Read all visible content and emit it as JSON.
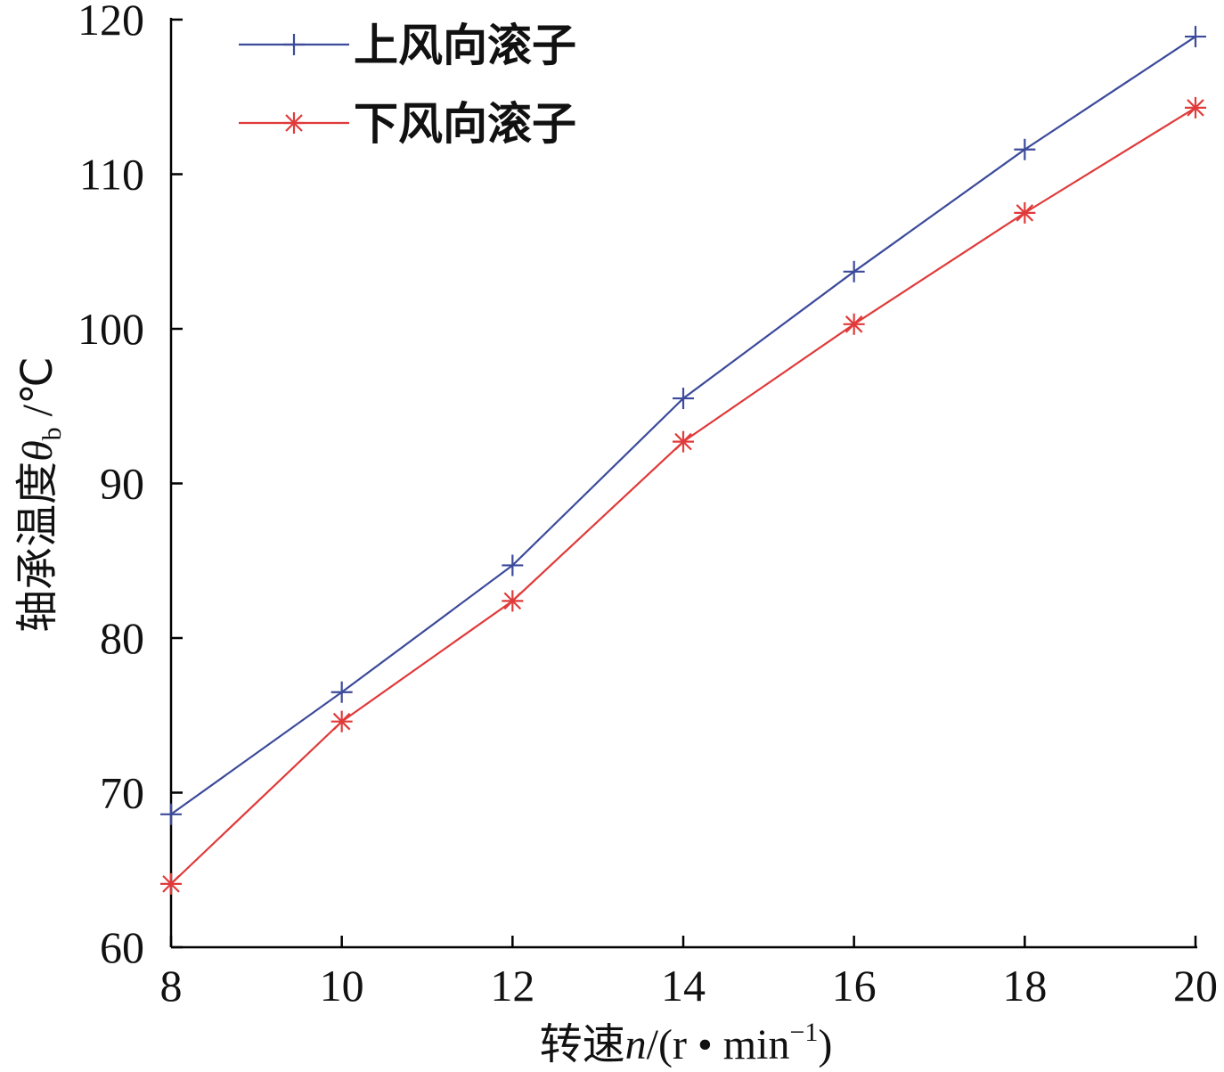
{
  "chart_data": {
    "type": "line",
    "title": "",
    "xlabel": {
      "prefix": "转速",
      "variable": "n",
      "unit_open": "/(r • min",
      "unit_exp": "−1",
      "unit_close": ")"
    },
    "ylabel": {
      "prefix": "轴承温度",
      "variable": "θ",
      "subscript": "b",
      "unit": " /℃"
    },
    "xlim": [
      8,
      20
    ],
    "ylim": [
      60,
      120
    ],
    "xticks": [
      8,
      10,
      12,
      14,
      16,
      18,
      20
    ],
    "yticks": [
      60,
      70,
      80,
      90,
      100,
      110,
      120
    ],
    "x": [
      8,
      10,
      12,
      14,
      16,
      18,
      20
    ],
    "series": [
      {
        "name": "上风向滚子",
        "marker": "plus",
        "color": "#3b4a9a",
        "values": [
          68.6,
          76.5,
          84.7,
          95.5,
          103.7,
          111.6,
          118.9
        ]
      },
      {
        "name": "下风向滚子",
        "marker": "asterisk",
        "color": "#e03a3a",
        "values": [
          64.1,
          74.6,
          82.4,
          92.7,
          100.3,
          107.5,
          114.3
        ]
      }
    ],
    "legend_position": "top-left",
    "grid": false
  }
}
